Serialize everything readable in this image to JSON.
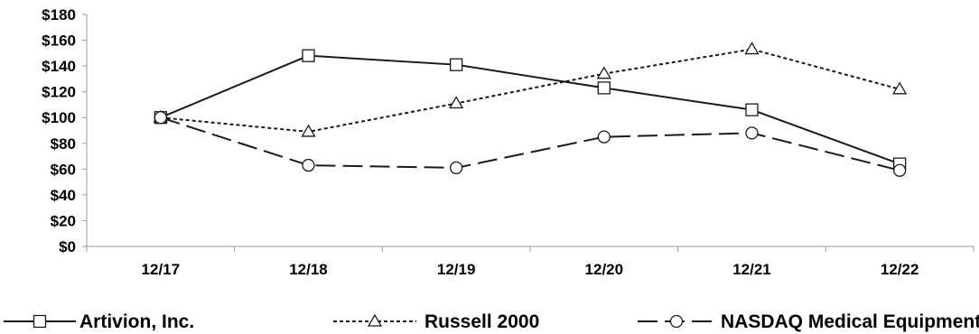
{
  "chart_data": {
    "type": "line",
    "title": "",
    "categories": [
      "12/17",
      "12/18",
      "12/19",
      "12/20",
      "12/21",
      "12/22"
    ],
    "y_ticks": [
      "$0",
      "$20",
      "$40",
      "$60",
      "$80",
      "$100",
      "$120",
      "$140",
      "$160",
      "$180"
    ],
    "ylim": [
      0,
      180
    ],
    "y_step": 20,
    "grid": false,
    "legend_position": "bottom",
    "series": [
      {
        "name": "Artivion, Inc.",
        "values": [
          100,
          148,
          141,
          123,
          106,
          64
        ],
        "marker": "square",
        "dash": "solid",
        "color": "#1a1a1a"
      },
      {
        "name": "Russell 2000",
        "values": [
          100,
          89,
          111,
          134,
          153,
          122
        ],
        "marker": "triangle",
        "dash": "dotted",
        "color": "#1a1a1a"
      },
      {
        "name": "NASDAQ Medical Equipment",
        "values": [
          100,
          63,
          61,
          85,
          88,
          59
        ],
        "marker": "circle",
        "dash": "dashed",
        "color": "#1a1a1a"
      }
    ]
  }
}
